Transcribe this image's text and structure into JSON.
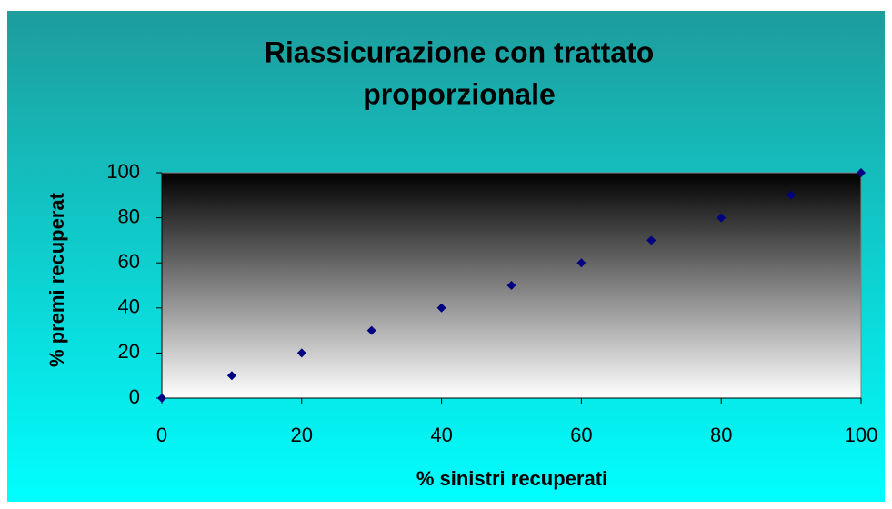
{
  "chart_data": {
    "type": "scatter",
    "title": [
      "Riassicurazione con trattato",
      "proporzionale"
    ],
    "x_label": "% sinistri recuperati",
    "y_label": "% premi recuperat",
    "series": [
      {
        "color": "#000080",
        "x": [
          0,
          10,
          20,
          30,
          40,
          50,
          60,
          70,
          80,
          90,
          100
        ],
        "values": [
          0,
          10,
          20,
          30,
          40,
          50,
          60,
          70,
          80,
          90,
          100
        ]
      }
    ],
    "xlim": [
      0,
      100
    ],
    "xticks": [
      0,
      20,
      40,
      60,
      80,
      100
    ],
    "ylim": [
      0,
      100
    ],
    "yticks": [
      0,
      20,
      40,
      60,
      80,
      100
    ]
  }
}
